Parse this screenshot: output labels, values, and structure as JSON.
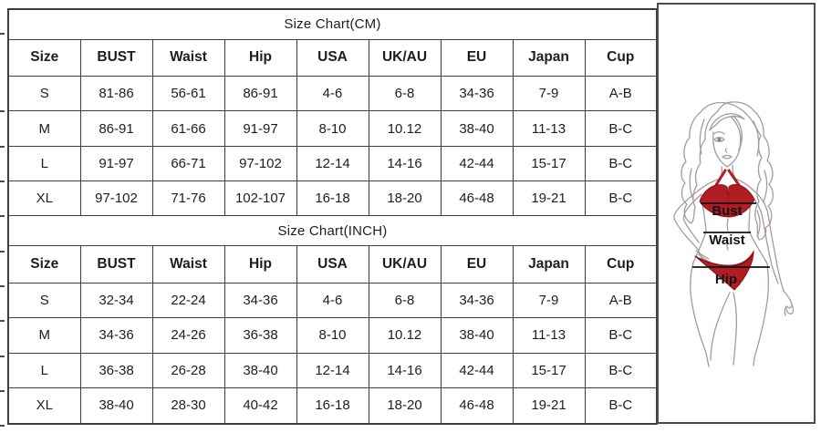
{
  "tables": [
    {
      "title": "Size Chart(CM)",
      "headers": [
        "Size",
        "BUST",
        "Waist",
        "Hip",
        "USA",
        "UK/AU",
        "EU",
        "Japan",
        "Cup"
      ],
      "rows": [
        [
          "S",
          "81-86",
          "56-61",
          "86-91",
          "4-6",
          "6-8",
          "34-36",
          "7-9",
          "A-B"
        ],
        [
          "M",
          "86-91",
          "61-66",
          "91-97",
          "8-10",
          "10.12",
          "38-40",
          "11-13",
          "B-C"
        ],
        [
          "L",
          "91-97",
          "66-71",
          "97-102",
          "12-14",
          "14-16",
          "42-44",
          "15-17",
          "B-C"
        ],
        [
          "XL",
          "97-102",
          "71-76",
          "102-107",
          "16-18",
          "18-20",
          "46-48",
          "19-21",
          "B-C"
        ]
      ]
    },
    {
      "title": "Size Chart(INCH)",
      "headers": [
        "Size",
        "BUST",
        "Waist",
        "Hip",
        "USA",
        "UK/AU",
        "EU",
        "Japan",
        "Cup"
      ],
      "rows": [
        [
          "S",
          "32-34",
          "22-24",
          "34-36",
          "4-6",
          "6-8",
          "34-36",
          "7-9",
          "A-B"
        ],
        [
          "M",
          "34-36",
          "24-26",
          "36-38",
          "8-10",
          "10.12",
          "38-40",
          "11-13",
          "B-C"
        ],
        [
          "L",
          "36-38",
          "26-28",
          "38-40",
          "12-14",
          "14-16",
          "42-44",
          "15-17",
          "B-C"
        ],
        [
          "XL",
          "38-40",
          "28-30",
          "40-42",
          "16-18",
          "18-20",
          "46-48",
          "19-21",
          "B-C"
        ]
      ]
    }
  ],
  "figure": {
    "labels": {
      "bust": "Bust",
      "waist": "Waist",
      "hip": "Hip"
    }
  },
  "colors": {
    "bikini_red": "#b01e23",
    "body_outline": "#a59b9b",
    "table_border": "#3d3d3d",
    "text": "#1e1e1e"
  }
}
